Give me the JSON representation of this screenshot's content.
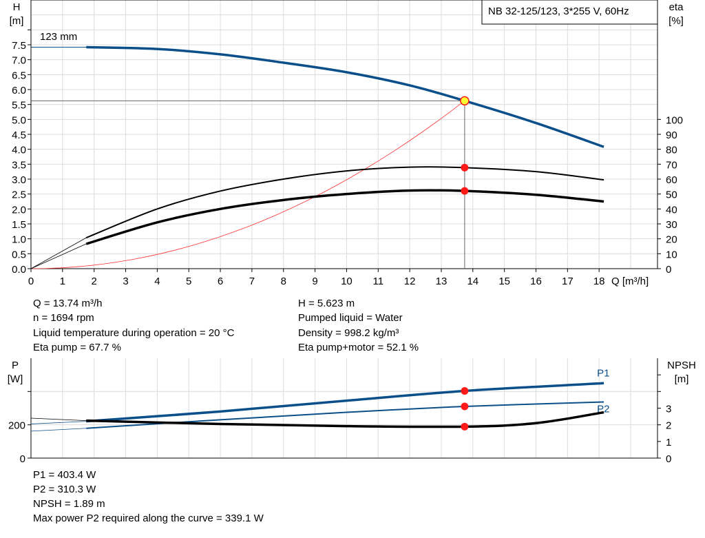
{
  "chart_data": [
    {
      "type": "line",
      "title": "NB 32-125/123, 3*255 V, 60Hz",
      "impeller_label": "123 mm",
      "xlabel": "Q [m³/h]",
      "xlim": [
        0,
        19.85
      ],
      "xticks": [
        0,
        1,
        2,
        3,
        4,
        5,
        6,
        7,
        8,
        9,
        10,
        11,
        12,
        13,
        14,
        15,
        16,
        17,
        18
      ],
      "ylabel_left": "H",
      "ylabel_left_unit": "[m]",
      "ylim_left": [
        0,
        9
      ],
      "yticks_left": [
        "0.0",
        "0.5",
        "1.0",
        "1.5",
        "2.0",
        "2.5",
        "3.0",
        "3.5",
        "4.0",
        "4.5",
        "5.0",
        "5.5",
        "6.0",
        "6.5",
        "7.0",
        "7.5"
      ],
      "ylabel_right": "eta",
      "ylabel_right_unit": "[%]",
      "ylim_right": [
        0,
        180
      ],
      "yticks_right": [
        0,
        10,
        20,
        30,
        40,
        50,
        60,
        70,
        80,
        90,
        100
      ],
      "grid": true,
      "series": [
        {
          "axis": "left",
          "color": "#0b4f8a",
          "points": [
            [
              1.75,
              7.42
            ],
            [
              4,
              7.36
            ],
            [
              6,
              7.18
            ],
            [
              8,
              6.9
            ],
            [
              10,
              6.58
            ],
            [
              12,
              6.14
            ],
            [
              13.74,
              5.623
            ],
            [
              16,
              4.88
            ],
            [
              18.15,
              4.08
            ]
          ]
        },
        {
          "axis": "right",
          "color": "#000000",
          "points": [
            [
              1.75,
              20.7
            ],
            [
              4,
              40
            ],
            [
              6,
              52
            ],
            [
              8,
              60
            ],
            [
              10,
              65.5
            ],
            [
              12,
              68
            ],
            [
              13.74,
              67.7
            ],
            [
              16,
              65
            ],
            [
              18.15,
              59.5
            ]
          ]
        },
        {
          "axis": "right",
          "color": "#000000",
          "points": [
            [
              1.75,
              16.6
            ],
            [
              4,
              31
            ],
            [
              6,
              40
            ],
            [
              8,
              46
            ],
            [
              10,
              50
            ],
            [
              12,
              52.3
            ],
            [
              13.74,
              52.1
            ],
            [
              16,
              49.5
            ],
            [
              18.15,
              45
            ]
          ]
        },
        {
          "axis": "left",
          "color": "#ff3030",
          "points": "system-curve"
        }
      ],
      "operating_point": {
        "Q": 13.74,
        "H": 5.623,
        "eta_pump": 67.7,
        "eta_total": 52.1
      }
    },
    {
      "type": "line",
      "xlim": [
        0,
        19.85
      ],
      "ylabel_left": "P",
      "ylabel_left_unit": "[W]",
      "ylim_left": [
        0,
        600
      ],
      "yticks_left": [
        0,
        200
      ],
      "ylabel_right": "NPSH",
      "ylabel_right_unit": "[m]",
      "ylim_right": [
        0,
        6
      ],
      "yticks_right": [
        0,
        1,
        2,
        3
      ],
      "grid": true,
      "series": [
        {
          "name": "P1",
          "axis": "left",
          "color": "#0b4f8a",
          "points": [
            [
              0,
              205
            ],
            [
              1.75,
              221
            ],
            [
              6,
              280
            ],
            [
              10,
              345
            ],
            [
              13.74,
              403.4
            ],
            [
              18.15,
              450
            ]
          ]
        },
        {
          "name": "P2",
          "axis": "left",
          "color": "#0b4f8a",
          "points": [
            [
              0,
              162
            ],
            [
              1.75,
              179
            ],
            [
              6,
              230
            ],
            [
              10,
              275
            ],
            [
              13.74,
              310.3
            ],
            [
              18.15,
              337
            ]
          ]
        },
        {
          "axis": "right",
          "color": "#000000",
          "points": [
            [
              0,
              2.4
            ],
            [
              1.75,
              2.25
            ],
            [
              6,
              2.05
            ],
            [
              10,
              1.92
            ],
            [
              13.74,
              1.89
            ],
            [
              16,
              2.1
            ],
            [
              18.15,
              2.75
            ]
          ]
        }
      ],
      "operating_point": {
        "Q": 13.74,
        "P1": 403.4,
        "P2": 310.3,
        "NPSH": 1.89
      }
    }
  ],
  "info": {
    "q": "Q = 13.74 m³/h",
    "n": "n = 1694 rpm",
    "temp": "Liquid temperature during operation = 20 °C",
    "eta_pump": "Eta pump = 67.7 %",
    "h": "H = 5.623 m",
    "liquid": "Pumped liquid = Water",
    "density": "Density = 998.2 kg/m³",
    "eta_total": "Eta pump+motor = 52.1 %"
  },
  "info2": {
    "p1": "P1 = 403.4 W",
    "p2": "P2 = 310.3 W",
    "npsh": "NPSH = 1.89 m",
    "maxp2": "Max power P2 required along the curve = 339.1 W"
  }
}
